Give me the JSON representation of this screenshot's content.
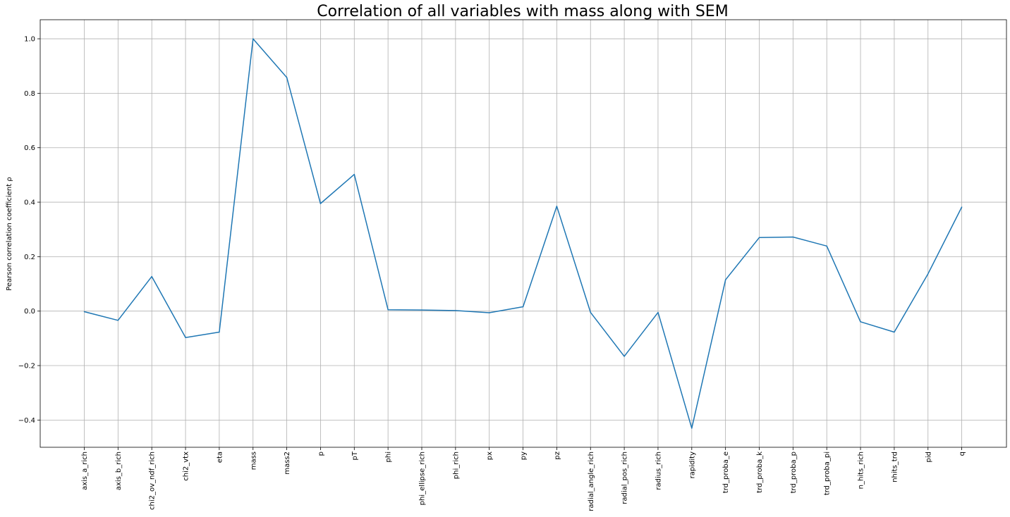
{
  "chart_data": {
    "type": "line",
    "title": "Correlation of all variables with mass along with SEM",
    "xlabel": "",
    "ylabel": "Pearson correlation coefficient ρ",
    "categories": [
      "axis_a_rich",
      "axis_b_rich",
      "chi2_ov_ndf_rich",
      "chi2_vtx",
      "eta",
      "mass",
      "mass2",
      "p",
      "pT",
      "phi",
      "phi_ellipse_rich",
      "phi_rich",
      "px",
      "py",
      "pz",
      "radial_angle_rich",
      "radial_pos_rich",
      "radius_rich",
      "rapidity",
      "trd_proba_e",
      "trd_proba_k",
      "trd_proba_p",
      "trd_proba_pi",
      "n_hits_rich",
      "nhits_trd",
      "pid",
      "q"
    ],
    "series": [
      {
        "name": "",
        "color": "#1f77b4",
        "values": [
          -0.002,
          -0.034,
          0.127,
          -0.097,
          -0.077,
          1.0,
          0.858,
          0.395,
          0.502,
          0.005,
          0.004,
          0.002,
          -0.006,
          0.016,
          0.385,
          -0.005,
          -0.166,
          -0.005,
          -0.43,
          0.115,
          0.27,
          0.272,
          0.239,
          -0.039,
          -0.077,
          0.137,
          0.382
        ]
      }
    ],
    "ylim": [
      -0.5,
      1.07
    ],
    "yticks": [
      -0.4,
      -0.2,
      0.0,
      0.2,
      0.4,
      0.6,
      0.8,
      1.0
    ],
    "ytick_labels": [
      "−0.4",
      "−0.2",
      "0.0",
      "0.2",
      "0.4",
      "0.6",
      "0.8",
      "1.0"
    ],
    "grid": true,
    "legend": "none"
  }
}
